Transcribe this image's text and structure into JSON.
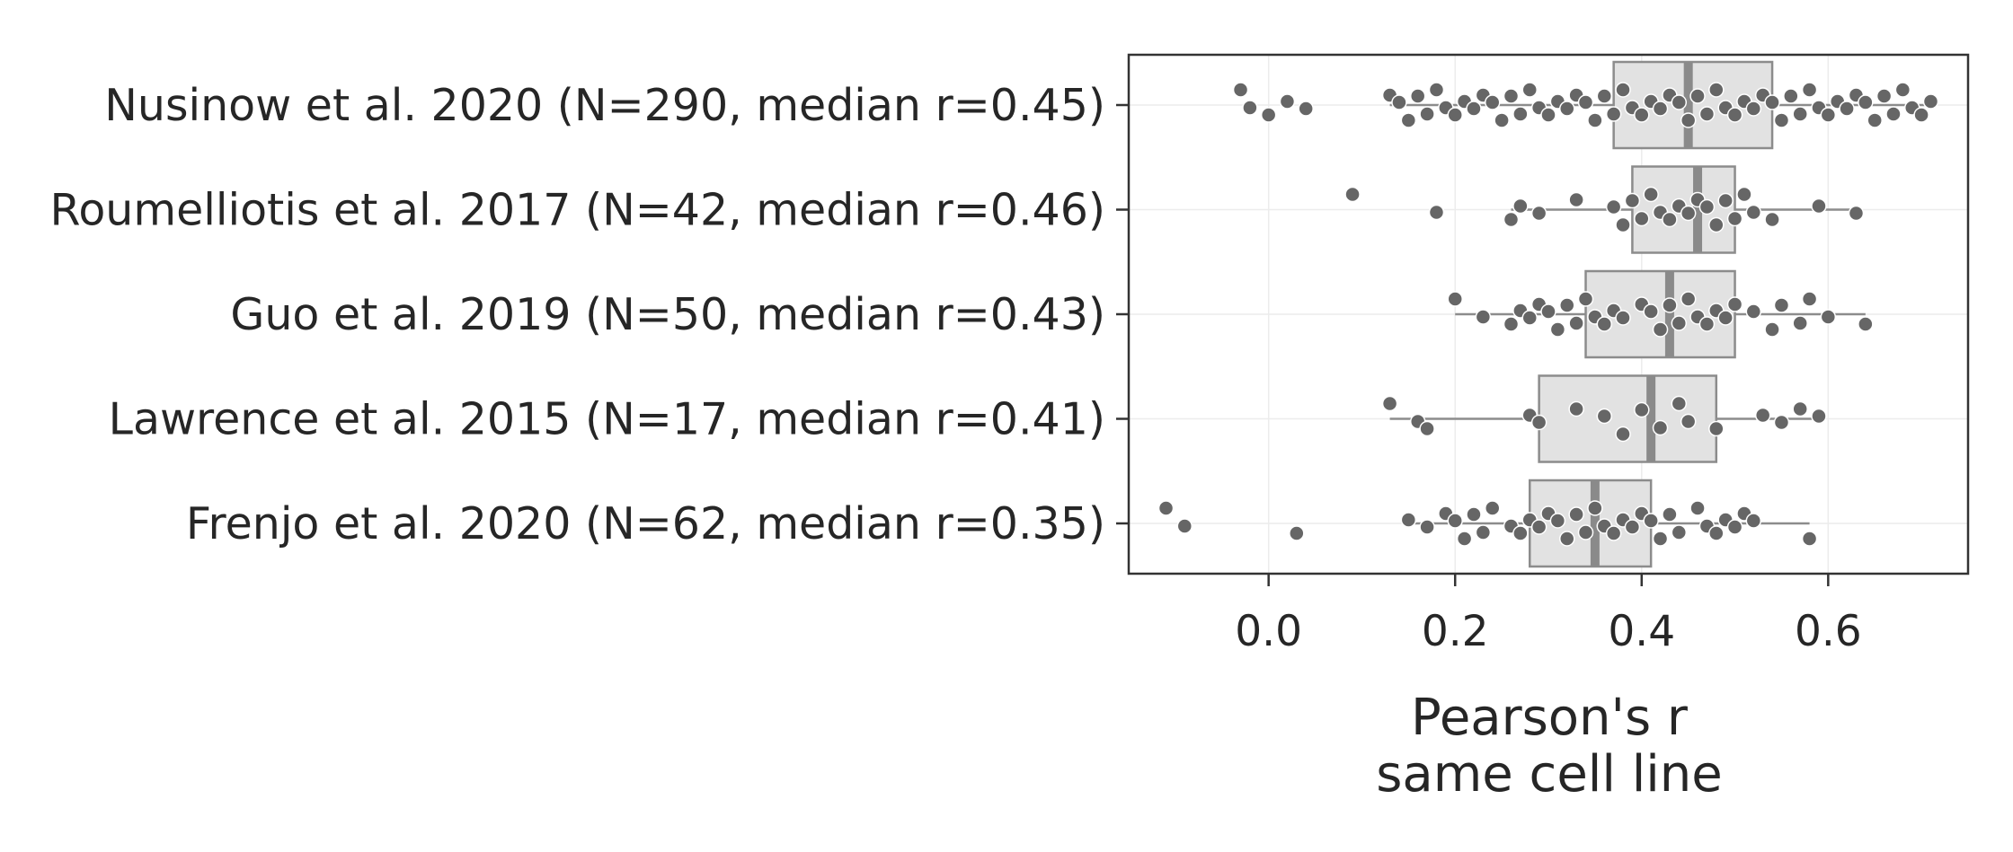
{
  "chart_data": {
    "type": "box",
    "orientation": "horizontal",
    "xlabel_lines": [
      "Pearson's r",
      "same cell line"
    ],
    "xlim": [
      -0.15,
      0.75
    ],
    "xticks": [
      0.0,
      0.2,
      0.4,
      0.6
    ],
    "xtick_labels": [
      "0.0",
      "0.2",
      "0.4",
      "0.6"
    ],
    "grid": true,
    "colors": {
      "box_fill": "#e2e2e2",
      "box_edge": "#8c8c8c",
      "point": "#666666"
    },
    "categories": [
      {
        "label": "Nusinow et al. 2020 (N=290, median r=0.45)",
        "q1": 0.37,
        "median": 0.45,
        "q3": 0.54,
        "whisker_low": 0.13,
        "whisker_high": 0.71,
        "points": [
          -0.03,
          -0.02,
          0.0,
          0.02,
          0.04,
          0.13,
          0.14,
          0.15,
          0.16,
          0.17,
          0.18,
          0.19,
          0.2,
          0.21,
          0.22,
          0.23,
          0.24,
          0.25,
          0.26,
          0.27,
          0.28,
          0.29,
          0.3,
          0.31,
          0.32,
          0.33,
          0.34,
          0.35,
          0.36,
          0.37,
          0.38,
          0.39,
          0.4,
          0.41,
          0.42,
          0.43,
          0.44,
          0.45,
          0.46,
          0.47,
          0.48,
          0.49,
          0.5,
          0.51,
          0.52,
          0.53,
          0.54,
          0.55,
          0.56,
          0.57,
          0.58,
          0.59,
          0.6,
          0.61,
          0.62,
          0.63,
          0.64,
          0.65,
          0.66,
          0.67,
          0.68,
          0.69,
          0.7,
          0.71
        ]
      },
      {
        "label": "Roumelliotis et al. 2017 (N=42, median r=0.46)",
        "q1": 0.39,
        "median": 0.46,
        "q3": 0.5,
        "whisker_low": 0.26,
        "whisker_high": 0.63,
        "points": [
          0.09,
          0.18,
          0.26,
          0.27,
          0.29,
          0.33,
          0.37,
          0.38,
          0.39,
          0.4,
          0.41,
          0.42,
          0.43,
          0.44,
          0.45,
          0.46,
          0.47,
          0.48,
          0.49,
          0.5,
          0.51,
          0.52,
          0.54,
          0.59,
          0.63
        ]
      },
      {
        "label": "Guo et al. 2019 (N=50, median r=0.43)",
        "q1": 0.34,
        "median": 0.43,
        "q3": 0.5,
        "whisker_low": 0.2,
        "whisker_high": 0.64,
        "points": [
          0.2,
          0.23,
          0.26,
          0.27,
          0.28,
          0.29,
          0.3,
          0.31,
          0.32,
          0.33,
          0.34,
          0.35,
          0.36,
          0.37,
          0.38,
          0.4,
          0.41,
          0.42,
          0.43,
          0.44,
          0.45,
          0.46,
          0.47,
          0.48,
          0.49,
          0.5,
          0.52,
          0.54,
          0.55,
          0.57,
          0.58,
          0.6,
          0.64
        ]
      },
      {
        "label": "Lawrence et al. 2015 (N=17, median r=0.41)",
        "q1": 0.29,
        "median": 0.41,
        "q3": 0.48,
        "whisker_low": 0.13,
        "whisker_high": 0.59,
        "points": [
          0.13,
          0.16,
          0.17,
          0.28,
          0.29,
          0.33,
          0.36,
          0.38,
          0.4,
          0.42,
          0.44,
          0.45,
          0.48,
          0.53,
          0.55,
          0.57,
          0.59
        ]
      },
      {
        "label": "Frenjo et al. 2020 (N=62, median r=0.35)",
        "q1": 0.28,
        "median": 0.35,
        "q3": 0.41,
        "whisker_low": 0.15,
        "whisker_high": 0.58,
        "points": [
          -0.11,
          -0.09,
          0.03,
          0.15,
          0.17,
          0.19,
          0.2,
          0.21,
          0.22,
          0.23,
          0.24,
          0.26,
          0.27,
          0.28,
          0.29,
          0.3,
          0.31,
          0.32,
          0.33,
          0.34,
          0.35,
          0.36,
          0.37,
          0.38,
          0.39,
          0.4,
          0.41,
          0.42,
          0.43,
          0.44,
          0.46,
          0.47,
          0.48,
          0.49,
          0.5,
          0.51,
          0.52,
          0.58
        ]
      }
    ]
  }
}
